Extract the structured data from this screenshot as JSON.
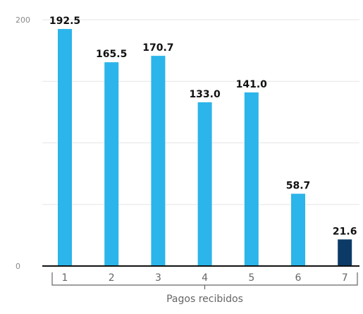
{
  "chart_data": {
    "type": "bar",
    "categories": [
      "1",
      "2",
      "3",
      "4",
      "5",
      "6",
      "7"
    ],
    "values": [
      192.5,
      165.5,
      170.7,
      133.0,
      141.0,
      58.7,
      21.6
    ],
    "value_labels": [
      "192.5",
      "165.5",
      "170.7",
      "133.0",
      "141.0",
      "58.7",
      "21.6"
    ],
    "highlight_index": 6,
    "xlabel": "Pagos recibidos",
    "ylabel": "",
    "ylim": [
      0,
      200
    ],
    "yticks": [
      0,
      200
    ],
    "ytick_labels": [
      "0",
      "200"
    ],
    "grid": true,
    "colors": {
      "bar": "#2bb5ea",
      "highlight": "#0b3a66",
      "axis": "#111111",
      "grid": "#e6e6e6"
    }
  }
}
